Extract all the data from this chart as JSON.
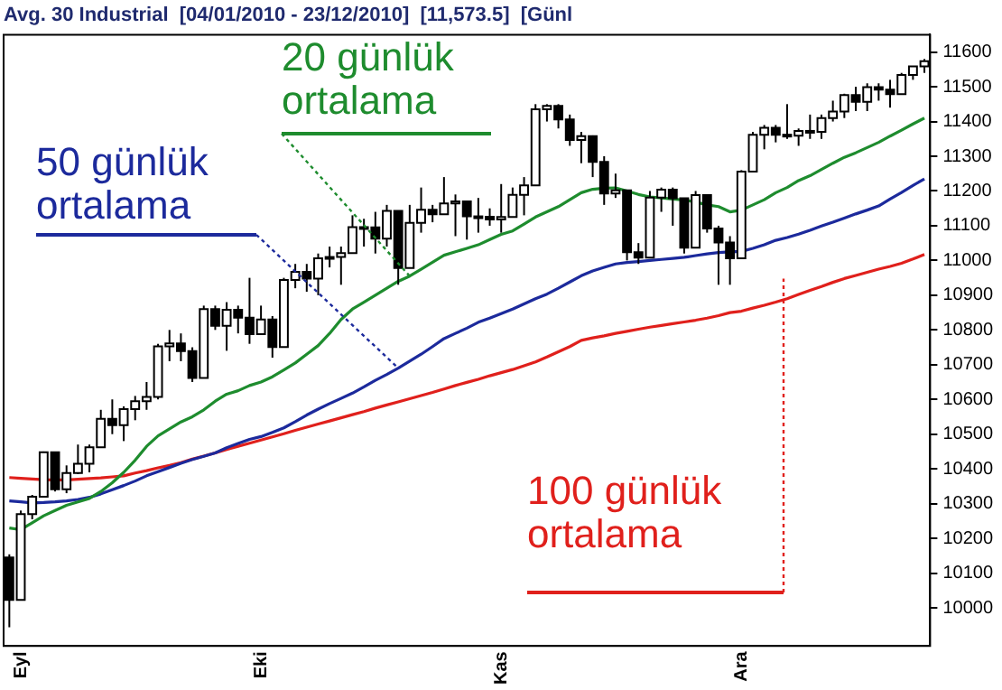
{
  "chart_data": {
    "type": "candlestick",
    "title": "Avg. 30 Industrial  [04/01/2010 - 23/12/2010]  [11,573.5]  [Günl",
    "categories": [
      null,
      "Eyl",
      null,
      null,
      null,
      null,
      null,
      null,
      null,
      null,
      null,
      null,
      null,
      null,
      null,
      null,
      null,
      null,
      null,
      null,
      null,
      null,
      "Eki",
      null,
      null,
      null,
      null,
      null,
      null,
      null,
      null,
      null,
      null,
      null,
      null,
      null,
      null,
      null,
      null,
      null,
      null,
      null,
      null,
      "Kas",
      null,
      null,
      null,
      null,
      null,
      null,
      null,
      null,
      null,
      null,
      null,
      null,
      null,
      null,
      null,
      null,
      null,
      null,
      null,
      null,
      "Ara",
      null,
      null,
      null,
      null,
      null,
      null,
      null,
      null,
      null,
      null,
      null,
      null,
      null,
      null,
      null,
      null
    ],
    "colors": [
      "#000000",
      "#ffffff",
      "#ffffff",
      "#ffffff",
      "#000000",
      "#ffffff",
      "#ffffff",
      "#ffffff",
      "#ffffff",
      "#000000",
      "#ffffff",
      "#ffffff",
      "#ffffff",
      "#ffffff",
      "#ffffff",
      "#000000",
      "#000000",
      "#ffffff",
      "#000000",
      "#ffffff",
      "#000000",
      "#000000",
      "#ffffff",
      "#000000",
      "#ffffff",
      "#ffffff",
      "#000000",
      "#ffffff",
      "#ffffff",
      "#ffffff",
      "#ffffff",
      "#000000",
      "#000000",
      "#ffffff",
      "#000000",
      "#ffffff",
      "#ffffff",
      "#000000",
      "#ffffff",
      "#ffffff",
      "#000000",
      "#000000",
      "#000000",
      "#ffffff",
      "#ffffff",
      "#ffffff",
      "#ffffff",
      "#ffffff",
      "#000000",
      "#000000",
      "#ffffff",
      "#000000",
      "#000000",
      "#ffffff",
      "#000000",
      "#000000",
      "#ffffff",
      "#ffffff",
      "#000000",
      "#000000",
      "#ffffff",
      "#000000",
      "#000000",
      "#000000",
      "#ffffff",
      "#ffffff",
      "#ffffff",
      "#000000",
      "#000000",
      "#ffffff",
      "#000000",
      "#ffffff",
      "#ffffff",
      "#ffffff",
      "#000000",
      "#ffffff",
      "#000000",
      "#000000",
      "#ffffff",
      "#ffffff",
      "#ffffff"
    ],
    "ohlc": [
      [
        10145,
        10154,
        9944,
        10023
      ],
      [
        10023,
        10280,
        10023,
        10270
      ],
      [
        10270,
        10325,
        10255,
        10320
      ],
      [
        10320,
        10450,
        10320,
        10448
      ],
      [
        10448,
        10448,
        10335,
        10341
      ],
      [
        10341,
        10410,
        10330,
        10388
      ],
      [
        10388,
        10470,
        10385,
        10415
      ],
      [
        10415,
        10470,
        10390,
        10462
      ],
      [
        10462,
        10570,
        10462,
        10544
      ],
      [
        10544,
        10600,
        10500,
        10526
      ],
      [
        10526,
        10580,
        10480,
        10572
      ],
      [
        10572,
        10610,
        10540,
        10595
      ],
      [
        10595,
        10650,
        10570,
        10607
      ],
      [
        10607,
        10760,
        10600,
        10753
      ],
      [
        10753,
        10800,
        10710,
        10761
      ],
      [
        10761,
        10790,
        10710,
        10739
      ],
      [
        10739,
        10750,
        10650,
        10662
      ],
      [
        10662,
        10870,
        10662,
        10860
      ],
      [
        10860,
        10870,
        10800,
        10812
      ],
      [
        10812,
        10880,
        10740,
        10858
      ],
      [
        10858,
        10870,
        10790,
        10835
      ],
      [
        10835,
        10950,
        10760,
        10788
      ],
      [
        10788,
        10870,
        10788,
        10830
      ],
      [
        10830,
        10840,
        10720,
        10751
      ],
      [
        10751,
        10950,
        10751,
        10944
      ],
      [
        10944,
        10990,
        10920,
        10967
      ],
      [
        10967,
        10990,
        10910,
        10948
      ],
      [
        10948,
        11020,
        10900,
        11006
      ],
      [
        11006,
        11040,
        10980,
        11010
      ],
      [
        11010,
        11040,
        10930,
        11021
      ],
      [
        11021,
        11130,
        11021,
        11096
      ],
      [
        11096,
        11120,
        11040,
        11095
      ],
      [
        11095,
        11140,
        11020,
        11063
      ],
      [
        11063,
        11160,
        11040,
        11143
      ],
      [
        11143,
        11143,
        10930,
        10978
      ],
      [
        10978,
        11160,
        10978,
        11108
      ],
      [
        11108,
        11210,
        11080,
        11146
      ],
      [
        11146,
        11160,
        11110,
        11133
      ],
      [
        11133,
        11240,
        11133,
        11164
      ],
      [
        11164,
        11190,
        11070,
        11170
      ],
      [
        11170,
        11170,
        11060,
        11127
      ],
      [
        11127,
        11180,
        11080,
        11126
      ],
      [
        11126,
        11150,
        11100,
        11118
      ],
      [
        11118,
        11220,
        11080,
        11125
      ],
      [
        11125,
        11210,
        11125,
        11189
      ],
      [
        11189,
        11240,
        11130,
        11216
      ],
      [
        11216,
        11450,
        11216,
        11435
      ],
      [
        11435,
        11450,
        11400,
        11445
      ],
      [
        11445,
        11450,
        11380,
        11406
      ],
      [
        11406,
        11420,
        11330,
        11347
      ],
      [
        11347,
        11370,
        11280,
        11358
      ],
      [
        11358,
        11360,
        11240,
        11284
      ],
      [
        11284,
        11300,
        11160,
        11193
      ],
      [
        11193,
        11250,
        11180,
        11202
      ],
      [
        11202,
        11202,
        11000,
        11024
      ],
      [
        11024,
        11050,
        10990,
        11008
      ],
      [
        11008,
        11200,
        11008,
        11181
      ],
      [
        11181,
        11210,
        11140,
        11204
      ],
      [
        11204,
        11210,
        11100,
        11179
      ],
      [
        11179,
        11179,
        11020,
        11037
      ],
      [
        11037,
        11200,
        11037,
        11188
      ],
      [
        11188,
        11190,
        11080,
        11092
      ],
      [
        11092,
        11100,
        10930,
        11052
      ],
      [
        11052,
        11070,
        10930,
        11006
      ],
      [
        11006,
        11260,
        11006,
        11256
      ],
      [
        11256,
        11370,
        11256,
        11362
      ],
      [
        11362,
        11390,
        11320,
        11382
      ],
      [
        11382,
        11390,
        11340,
        11362
      ],
      [
        11362,
        11450,
        11350,
        11359
      ],
      [
        11359,
        11380,
        11330,
        11373
      ],
      [
        11373,
        11420,
        11350,
        11370
      ],
      [
        11370,
        11420,
        11350,
        11410
      ],
      [
        11410,
        11460,
        11400,
        11429
      ],
      [
        11429,
        11480,
        11410,
        11476
      ],
      [
        11476,
        11500,
        11430,
        11457
      ],
      [
        11457,
        11510,
        11430,
        11499
      ],
      [
        11499,
        11510,
        11460,
        11492
      ],
      [
        11492,
        11520,
        11440,
        11479
      ],
      [
        11479,
        11540,
        11479,
        11534
      ],
      [
        11534,
        11560,
        11520,
        11559
      ],
      [
        11559,
        11580,
        11540,
        11573.5
      ]
    ],
    "series": [
      {
        "name": "20 günlük ortalama",
        "type": "line",
        "color": "#1e8c2e",
        "values": [
          10230,
          10225,
          10245,
          10265,
          10280,
          10295,
          10305,
          10315,
          10335,
          10360,
          10390,
          10425,
          10465,
          10495,
          10515,
          10535,
          10550,
          10570,
          10595,
          10615,
          10625,
          10640,
          10650,
          10665,
          10685,
          10705,
          10730,
          10755,
          10790,
          10830,
          10860,
          10880,
          10900,
          10920,
          10940,
          10955,
          10975,
          10995,
          11015,
          11025,
          11035,
          11045,
          11060,
          11075,
          11085,
          11105,
          11125,
          11140,
          11155,
          11175,
          11195,
          11205,
          11208,
          11209,
          11200,
          11190,
          11183,
          11180,
          11177,
          11174,
          11168,
          11160,
          11155,
          11140,
          11145,
          11160,
          11175,
          11195,
          11210,
          11230,
          11244,
          11262,
          11280,
          11297,
          11310,
          11325,
          11340,
          11358,
          11375,
          11393,
          11410
        ]
      },
      {
        "name": "50 günlük ortalama",
        "type": "line",
        "color": "#1c2a9c",
        "values": [
          10308,
          10305,
          10302,
          10303,
          10305,
          10308,
          10312,
          10318,
          10328,
          10340,
          10352,
          10365,
          10380,
          10392,
          10404,
          10416,
          10427,
          10436,
          10446,
          10461,
          10473,
          10485,
          10493,
          10505,
          10518,
          10536,
          10555,
          10572,
          10588,
          10603,
          10618,
          10636,
          10655,
          10672,
          10690,
          10710,
          10730,
          10752,
          10775,
          10790,
          10805,
          10822,
          10834,
          10847,
          10860,
          10875,
          10890,
          10903,
          10920,
          10938,
          10956,
          10970,
          10980,
          10990,
          10994,
          10997,
          11000,
          11003,
          11006,
          11009,
          11014,
          11019,
          11023,
          11025,
          11026,
          11035,
          11045,
          11058,
          11066,
          11076,
          11087,
          11099,
          11110,
          11122,
          11134,
          11145,
          11157,
          11177,
          11196,
          11216,
          11235
        ]
      },
      {
        "name": "100 günlük ortalama",
        "type": "line",
        "color": "#e0201c",
        "values": [
          10375,
          10373,
          10371,
          10369,
          10368,
          10368,
          10370,
          10372,
          10374,
          10377,
          10380,
          10388,
          10395,
          10403,
          10410,
          10418,
          10428,
          10437,
          10446,
          10456,
          10465,
          10474,
          10483,
          10492,
          10501,
          10511,
          10520,
          10529,
          10538,
          10547,
          10556,
          10565,
          10575,
          10584,
          10593,
          10602,
          10611,
          10620,
          10630,
          10640,
          10649,
          10658,
          10668,
          10677,
          10686,
          10697,
          10708,
          10722,
          10737,
          10752,
          10770,
          10777,
          10783,
          10790,
          10796,
          10802,
          10808,
          10813,
          10818,
          10823,
          10828,
          10834,
          10841,
          10850,
          10854,
          10863,
          10871,
          10880,
          10890,
          10902,
          10914,
          10925,
          10937,
          10948,
          10957,
          10966,
          10975,
          10983,
          10992,
          11004,
          11017
        ]
      }
    ],
    "ylim": [
      9890,
      11650
    ],
    "yticks": [
      10000,
      10100,
      10200,
      10300,
      10400,
      10500,
      10600,
      10700,
      10800,
      10900,
      11000,
      11100,
      11200,
      11300,
      11400,
      11500,
      11600
    ],
    "grid": false,
    "legend": false
  }
}
